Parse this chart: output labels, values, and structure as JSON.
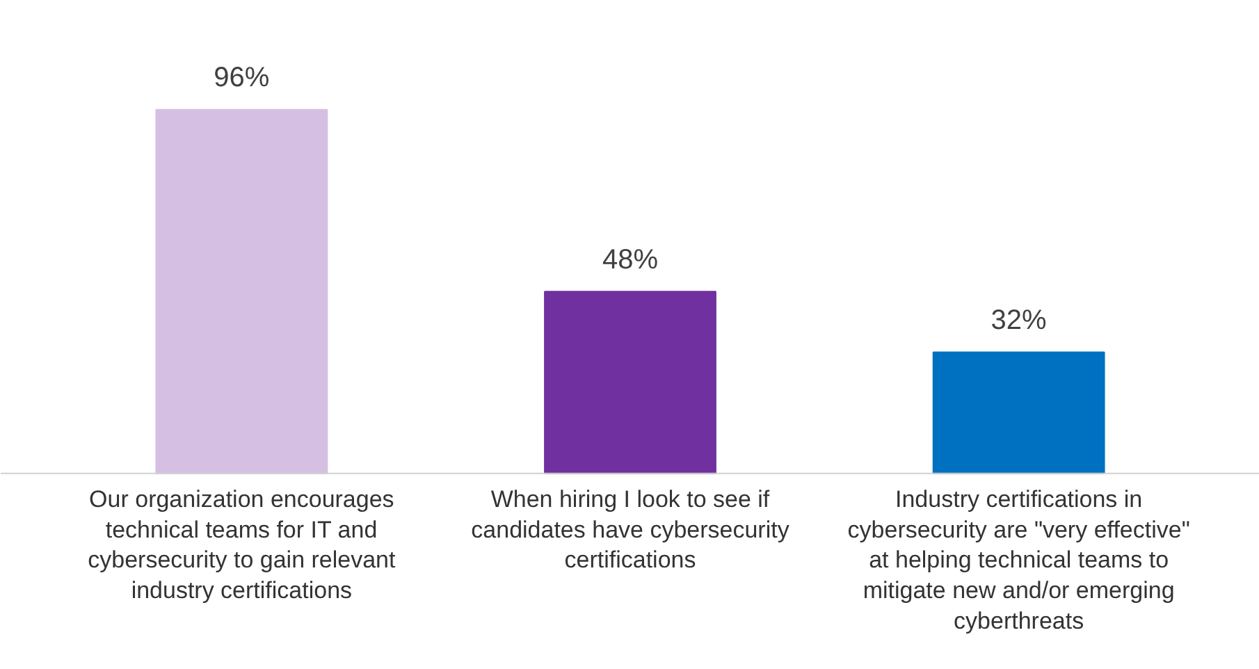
{
  "chart_data": {
    "type": "bar",
    "categories": [
      "Our organization encourages technical teams for IT and cybersecurity to gain relevant industry certifications",
      "When hiring I look to see if candidates have cybersecurity certifications",
      "Industry certifications in cybersecurity are \"very effective\" at helping technical teams to mitigate new and/or emerging cyberthreats"
    ],
    "values": [
      96,
      48,
      32
    ],
    "colors": [
      "#d5c0e4",
      "#7030a0",
      "#0070c0"
    ],
    "value_labels": [
      "96%",
      "48%",
      "32%"
    ],
    "grid": false
  }
}
